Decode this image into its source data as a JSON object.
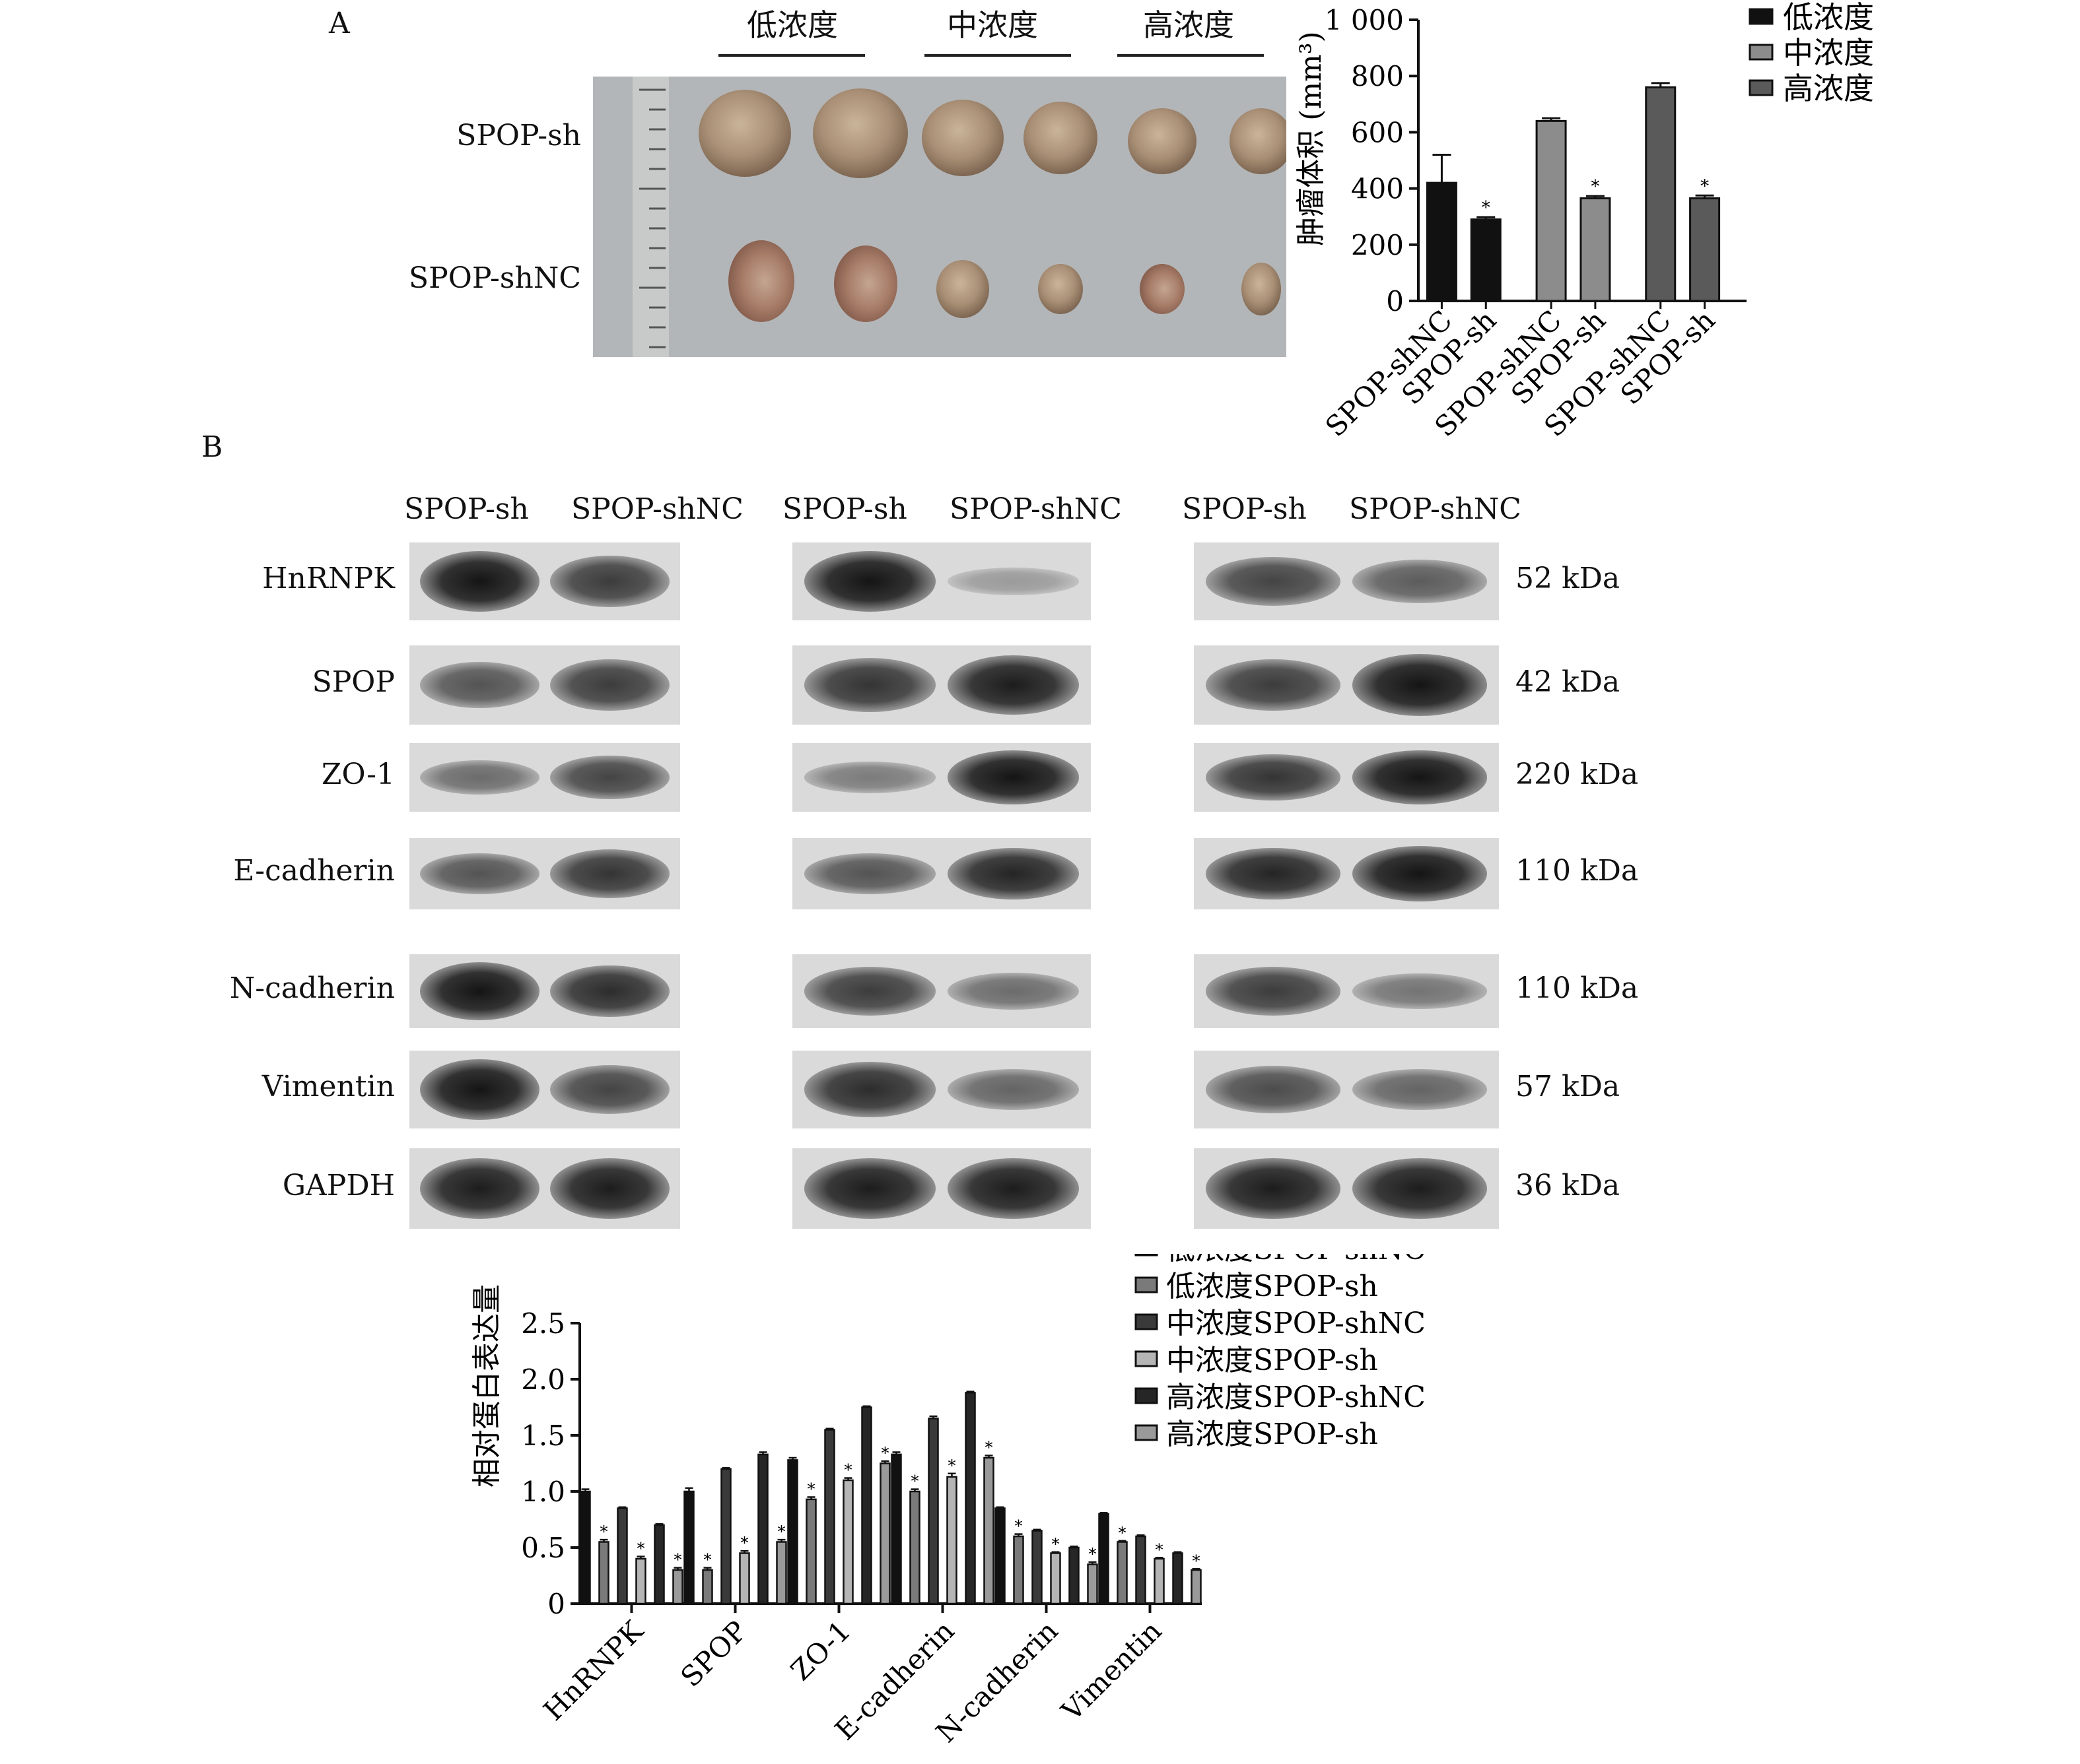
{
  "panel_a": {
    "letter": "A",
    "concentrations": [
      "低浓度",
      "中浓度",
      "高浓度"
    ],
    "rows": [
      "SPOP-sh",
      "SPOP-shNC"
    ]
  },
  "panel_b": {
    "letter": "B",
    "column_groups": [
      [
        "SPOP-sh",
        "SPOP-shNC"
      ],
      [
        "SPOP-sh",
        "SPOP-shNC"
      ],
      [
        "SPOP-sh",
        "SPOP-shNC"
      ]
    ],
    "proteins": [
      "HnRNPK",
      "SPOP",
      "ZO-1",
      "E-cadherin",
      "N-cadherin",
      "Vimentin",
      "GAPDH"
    ],
    "kda": [
      "52 kDa",
      "42 kDa",
      "220 kDa",
      "110 kDa",
      "110 kDa",
      "57 kDa",
      "36 kDa"
    ],
    "band_intensity": [
      [
        [
          1.0,
          0.75
        ],
        [
          1.0,
          0.15
        ],
        [
          0.7,
          0.55
        ]
      ],
      [
        [
          0.6,
          0.75
        ],
        [
          0.8,
          0.95
        ],
        [
          0.75,
          1.0
        ]
      ],
      [
        [
          0.45,
          0.7
        ],
        [
          0.35,
          1.0
        ],
        [
          0.8,
          1.0
        ]
      ],
      [
        [
          0.6,
          0.8
        ],
        [
          0.6,
          0.9
        ],
        [
          0.9,
          1.0
        ]
      ],
      [
        [
          1.0,
          0.85
        ],
        [
          0.75,
          0.45
        ],
        [
          0.75,
          0.4
        ]
      ],
      [
        [
          1.0,
          0.7
        ],
        [
          0.85,
          0.5
        ],
        [
          0.65,
          0.5
        ]
      ],
      [
        [
          0.95,
          0.95
        ],
        [
          0.95,
          0.95
        ],
        [
          0.95,
          0.95
        ]
      ]
    ]
  },
  "chart_data": [
    {
      "type": "bar",
      "title": "",
      "xlabel": "",
      "ylabel": "肿瘤体积 (mm³)",
      "ylim": [
        0,
        1000
      ],
      "yticks": [
        "0",
        "200",
        "400",
        "600",
        "800",
        "1 000"
      ],
      "categories": [
        "SPOP-shNC",
        "SPOP-sh",
        "SPOP-shNC",
        "SPOP-sh",
        "SPOP-shNC",
        "SPOP-sh"
      ],
      "values": [
        420,
        290,
        640,
        365,
        760,
        365
      ],
      "errors": [
        100,
        8,
        10,
        8,
        15,
        10
      ],
      "significant": [
        false,
        true,
        false,
        true,
        false,
        true
      ],
      "bar_groups": [
        "低浓度",
        "低浓度",
        "中浓度",
        "中浓度",
        "高浓度",
        "高浓度"
      ],
      "legend": [
        "低浓度",
        "中浓度",
        "高浓度"
      ],
      "legend_position": "top-right",
      "colors": [
        "#111111",
        "#8c8c8c",
        "#5a5a5a"
      ],
      "grid": false
    },
    {
      "type": "bar",
      "title": "",
      "xlabel": "",
      "ylabel": "相对蛋白表达量",
      "ylim": [
        0,
        2.5
      ],
      "yticks": [
        "0",
        "0.5",
        "1.0",
        "1.5",
        "2.0",
        "2.5"
      ],
      "categories": [
        "HnRNPK",
        "SPOP",
        "ZO-1",
        "E-cadherin",
        "N-cadherin",
        "Vimentin"
      ],
      "series": [
        {
          "name": "低浓度SPOP-shNC",
          "values": [
            1.0,
            1.0,
            1.28,
            1.33,
            0.85,
            0.8
          ],
          "errors": [
            0.02,
            0.03,
            0.02,
            0.02,
            0.01,
            0.01
          ],
          "color": "#111111"
        },
        {
          "name": "低浓度SPOP-sh",
          "values": [
            0.55,
            0.3,
            0.93,
            1.0,
            0.6,
            0.55
          ],
          "errors": [
            0.02,
            0.02,
            0.02,
            0.02,
            0.02,
            0.01
          ],
          "color": "#7a7a7a"
        },
        {
          "name": "中浓度SPOP-shNC",
          "values": [
            0.85,
            1.2,
            1.55,
            1.65,
            0.65,
            0.6
          ],
          "errors": [
            0.01,
            0.01,
            0.01,
            0.02,
            0.01,
            0.01
          ],
          "color": "#3a3a3a"
        },
        {
          "name": "中浓度SPOP-sh",
          "values": [
            0.4,
            0.45,
            1.1,
            1.13,
            0.45,
            0.4
          ],
          "errors": [
            0.02,
            0.02,
            0.02,
            0.03,
            0.01,
            0.01
          ],
          "color": "#b5b5b5"
        },
        {
          "name": "高浓度SPOP-shNC",
          "values": [
            0.7,
            1.33,
            1.75,
            1.88,
            0.5,
            0.45
          ],
          "errors": [
            0.01,
            0.02,
            0.01,
            0.01,
            0.01,
            0.01
          ],
          "color": "#262626"
        },
        {
          "name": "高浓度SPOP-sh",
          "values": [
            0.3,
            0.55,
            1.25,
            1.3,
            0.35,
            0.3
          ],
          "errors": [
            0.02,
            0.02,
            0.02,
            0.02,
            0.02,
            0.01
          ],
          "color": "#9a9a9a"
        }
      ],
      "significant_series": [
        "低浓度SPOP-sh",
        "中浓度SPOP-sh",
        "高浓度SPOP-sh"
      ],
      "legend_position": "top-right",
      "grid": false
    }
  ]
}
